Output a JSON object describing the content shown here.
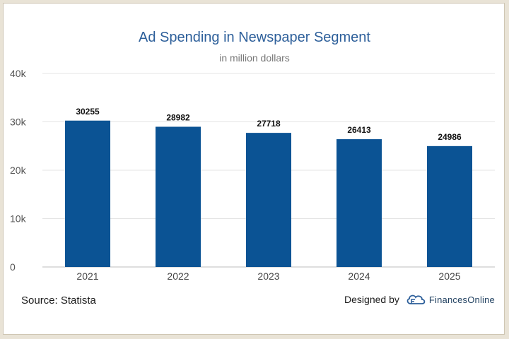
{
  "chart_data": {
    "type": "bar",
    "title": "Ad Spending in Newspaper Segment",
    "subtitle": "in million dollars",
    "categories": [
      "2021",
      "2022",
      "2023",
      "2024",
      "2025"
    ],
    "values": [
      30255,
      28982,
      27718,
      26413,
      24986
    ],
    "data_labels": [
      "30255",
      "28982",
      "27718",
      "26413",
      "24986"
    ],
    "ylim": [
      0,
      40000
    ],
    "yticks": [
      0,
      10000,
      20000,
      30000,
      40000
    ],
    "ytick_labels": [
      "0",
      "10k",
      "20k",
      "30k",
      "40k"
    ],
    "grid": true,
    "bar_color": "#0b5394"
  },
  "footer": {
    "source": "Source: Statista",
    "designed_by": "Designed by",
    "brand": "FinancesOnline"
  }
}
